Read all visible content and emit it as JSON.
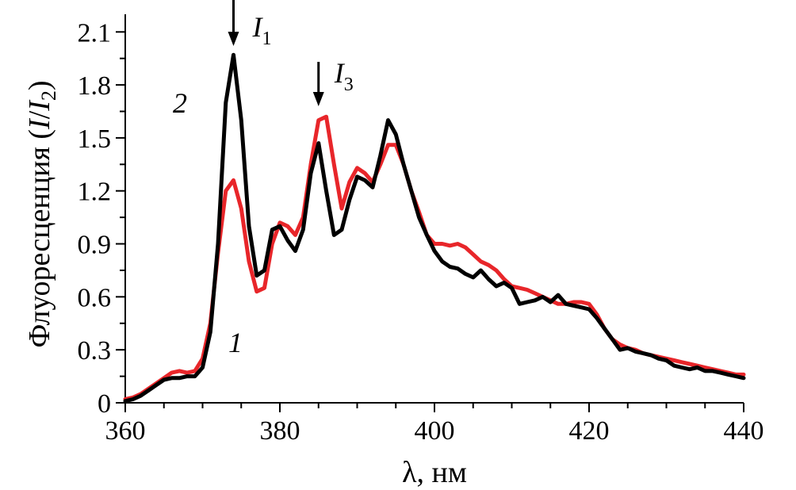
{
  "chart_data": {
    "type": "line",
    "title": "",
    "xlabel": "λ, нм",
    "ylabel_parts": [
      "Флуоресценция (",
      "I",
      "/",
      "I",
      "2",
      ")"
    ],
    "xlim": [
      360,
      440
    ],
    "ylim": [
      0,
      2.2
    ],
    "xticks": [
      360,
      380,
      400,
      420,
      440
    ],
    "xtick_labels": [
      "360",
      "380",
      "400",
      "420",
      "440"
    ],
    "yticks": [
      0,
      0.3,
      0.6,
      0.9,
      1.2,
      1.5,
      1.8,
      2.1
    ],
    "ytick_labels": [
      "0",
      "0.3",
      "0.6",
      "0.9",
      "1.2",
      "1.5",
      "1.8",
      "2.1"
    ],
    "grid": false,
    "series": [
      {
        "name": "1",
        "color": "#e8262a",
        "x": [
          360,
          361,
          362,
          363,
          364,
          365,
          366,
          367,
          368,
          369,
          370,
          371,
          372,
          373,
          374,
          375,
          376,
          377,
          378,
          379,
          380,
          381,
          382,
          383,
          384,
          385,
          386,
          387,
          388,
          389,
          390,
          391,
          392,
          393,
          394,
          395,
          396,
          397,
          398,
          399,
          400,
          401,
          402,
          403,
          404,
          405,
          406,
          407,
          408,
          409,
          410,
          411,
          412,
          413,
          414,
          415,
          416,
          417,
          418,
          419,
          420,
          421,
          422,
          423,
          424,
          425,
          426,
          427,
          428,
          429,
          430,
          431,
          432,
          433,
          434,
          435,
          436,
          437,
          438,
          439,
          440
        ],
        "y": [
          0.02,
          0.03,
          0.05,
          0.08,
          0.11,
          0.14,
          0.17,
          0.18,
          0.17,
          0.18,
          0.25,
          0.45,
          0.85,
          1.2,
          1.26,
          1.1,
          0.8,
          0.63,
          0.65,
          0.9,
          1.02,
          1.0,
          0.95,
          1.05,
          1.35,
          1.6,
          1.62,
          1.35,
          1.1,
          1.25,
          1.33,
          1.3,
          1.25,
          1.35,
          1.46,
          1.46,
          1.35,
          1.2,
          1.08,
          0.95,
          0.9,
          0.9,
          0.89,
          0.9,
          0.88,
          0.84,
          0.8,
          0.78,
          0.75,
          0.7,
          0.66,
          0.65,
          0.64,
          0.62,
          0.6,
          0.58,
          0.56,
          0.56,
          0.57,
          0.57,
          0.56,
          0.5,
          0.42,
          0.36,
          0.33,
          0.31,
          0.3,
          0.28,
          0.27,
          0.26,
          0.25,
          0.24,
          0.23,
          0.22,
          0.21,
          0.2,
          0.19,
          0.18,
          0.17,
          0.16,
          0.16
        ]
      },
      {
        "name": "2",
        "color": "#000000",
        "x": [
          360,
          361,
          362,
          363,
          364,
          365,
          366,
          367,
          368,
          369,
          370,
          371,
          372,
          373,
          374,
          375,
          376,
          377,
          378,
          379,
          380,
          381,
          382,
          383,
          384,
          385,
          386,
          387,
          388,
          389,
          390,
          391,
          392,
          393,
          394,
          395,
          396,
          397,
          398,
          399,
          400,
          401,
          402,
          403,
          404,
          405,
          406,
          407,
          408,
          409,
          410,
          411,
          412,
          413,
          414,
          415,
          416,
          417,
          418,
          419,
          420,
          421,
          422,
          423,
          424,
          425,
          426,
          427,
          428,
          429,
          430,
          431,
          432,
          433,
          434,
          435,
          436,
          437,
          438,
          439,
          440
        ],
        "y": [
          0.01,
          0.02,
          0.04,
          0.07,
          0.1,
          0.13,
          0.14,
          0.14,
          0.15,
          0.15,
          0.2,
          0.4,
          0.9,
          1.7,
          1.97,
          1.6,
          1.0,
          0.72,
          0.75,
          0.98,
          1.0,
          0.92,
          0.86,
          0.98,
          1.3,
          1.47,
          1.2,
          0.95,
          0.98,
          1.15,
          1.28,
          1.26,
          1.22,
          1.4,
          1.6,
          1.52,
          1.35,
          1.2,
          1.05,
          0.95,
          0.86,
          0.8,
          0.77,
          0.76,
          0.73,
          0.71,
          0.75,
          0.7,
          0.66,
          0.68,
          0.65,
          0.56,
          0.57,
          0.58,
          0.6,
          0.57,
          0.61,
          0.56,
          0.55,
          0.54,
          0.53,
          0.48,
          0.42,
          0.36,
          0.3,
          0.31,
          0.29,
          0.28,
          0.27,
          0.25,
          0.24,
          0.21,
          0.2,
          0.19,
          0.2,
          0.18,
          0.18,
          0.17,
          0.16,
          0.15,
          0.14
        ]
      }
    ],
    "annotations": {
      "peak1": {
        "label": "I",
        "sub": "1",
        "x": 374
      },
      "peak3": {
        "label": "I",
        "sub": "3",
        "x": 385
      },
      "curve1_label": "1",
      "curve2_label": "2"
    }
  }
}
